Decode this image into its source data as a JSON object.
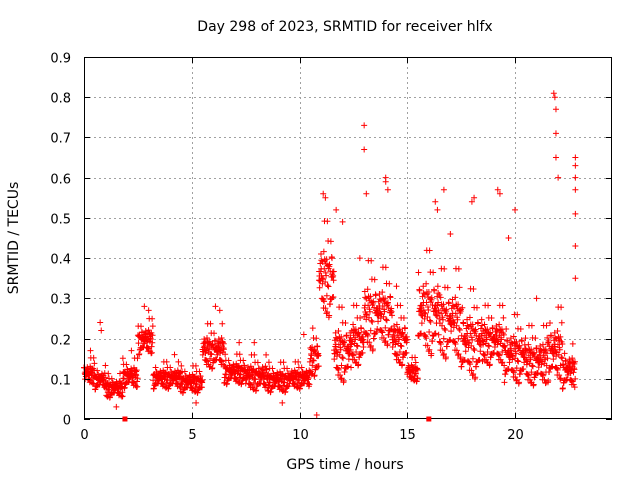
{
  "chart_data": {
    "type": "scatter",
    "title": "Day 298 of 2023, SRMTID for receiver hlfx",
    "xlabel": "GPS time / hours",
    "ylabel": "SRMTID / TECUs",
    "xlim": [
      0,
      24.5
    ],
    "ylim": [
      0,
      0.9
    ],
    "xticks": [
      0,
      5,
      10,
      15,
      20
    ],
    "xtick_labels": [
      "0",
      "5",
      "10",
      "15",
      "20"
    ],
    "yticks": [
      0,
      0.1,
      0.2,
      0.3,
      0.4,
      0.5,
      0.6,
      0.7,
      0.8,
      0.9
    ],
    "ytick_labels": [
      "0",
      "0.1",
      "0.2",
      "0.3",
      "0.4",
      "0.5",
      "0.6",
      "0.7",
      "0.8",
      "0.9"
    ],
    "grid": true,
    "marker": "+",
    "color": "#ff0000",
    "axis_markers_x": [
      1.9,
      16.0
    ],
    "series": [
      {
        "name": "SRMTID",
        "segments": [
          {
            "start": 0.0,
            "end": 0.5,
            "min": 0.07,
            "max": 0.16,
            "peaks": [
              [
                0.3,
                0.17
              ]
            ]
          },
          {
            "start": 0.5,
            "end": 1.0,
            "min": 0.06,
            "max": 0.14,
            "peaks": [
              [
                0.75,
                0.24
              ],
              [
                0.8,
                0.22
              ]
            ]
          },
          {
            "start": 1.0,
            "end": 1.8,
            "min": 0.04,
            "max": 0.12,
            "peaks": [
              [
                1.5,
                0.03
              ]
            ]
          },
          {
            "start": 1.8,
            "end": 2.5,
            "min": 0.06,
            "max": 0.16,
            "peaks": [
              [
                2.2,
                0.17
              ]
            ]
          },
          {
            "start": 2.5,
            "end": 3.2,
            "min": 0.14,
            "max": 0.26,
            "peaks": [
              [
                2.8,
                0.28
              ],
              [
                3.0,
                0.27
              ]
            ]
          },
          {
            "start": 3.2,
            "end": 4.5,
            "min": 0.06,
            "max": 0.15,
            "peaks": [
              [
                4.2,
                0.16
              ]
            ]
          },
          {
            "start": 4.5,
            "end": 5.5,
            "min": 0.05,
            "max": 0.14,
            "peaks": [
              [
                5.2,
                0.04
              ]
            ]
          },
          {
            "start": 5.5,
            "end": 6.5,
            "min": 0.1,
            "max": 0.25,
            "peaks": [
              [
                6.1,
                0.28
              ],
              [
                6.3,
                0.27
              ]
            ]
          },
          {
            "start": 6.5,
            "end": 7.5,
            "min": 0.07,
            "max": 0.17,
            "peaks": [
              [
                7.2,
                0.19
              ]
            ]
          },
          {
            "start": 7.5,
            "end": 8.5,
            "min": 0.05,
            "max": 0.17,
            "peaks": [
              [
                7.9,
                0.19
              ]
            ]
          },
          {
            "start": 8.5,
            "end": 9.5,
            "min": 0.05,
            "max": 0.15,
            "peaks": [
              [
                9.2,
                0.04
              ]
            ]
          },
          {
            "start": 9.5,
            "end": 10.5,
            "min": 0.06,
            "max": 0.15,
            "peaks": [
              [
                10.2,
                0.21
              ]
            ]
          },
          {
            "start": 10.5,
            "end": 10.9,
            "min": 0.08,
            "max": 0.24,
            "peaks": [
              [
                10.8,
                0.01
              ]
            ]
          },
          {
            "start": 10.9,
            "end": 11.6,
            "min": 0.2,
            "max": 0.52,
            "peaks": [
              [
                11.1,
                0.56
              ],
              [
                11.2,
                0.55
              ]
            ]
          },
          {
            "start": 11.6,
            "end": 12.4,
            "min": 0.05,
            "max": 0.3,
            "peaks": [
              [
                11.7,
                0.52
              ],
              [
                12.0,
                0.49
              ]
            ]
          },
          {
            "start": 12.4,
            "end": 13.0,
            "min": 0.1,
            "max": 0.3,
            "peaks": [
              [
                12.8,
                0.4
              ]
            ]
          },
          {
            "start": 13.0,
            "end": 13.6,
            "min": 0.12,
            "max": 0.42,
            "peaks": [
              [
                13.0,
                0.73
              ],
              [
                13.0,
                0.67
              ],
              [
                13.1,
                0.56
              ]
            ]
          },
          {
            "start": 13.6,
            "end": 14.3,
            "min": 0.14,
            "max": 0.4,
            "peaks": [
              [
                14.0,
                0.6
              ],
              [
                14.0,
                0.59
              ],
              [
                14.1,
                0.57
              ]
            ]
          },
          {
            "start": 14.3,
            "end": 15.0,
            "min": 0.1,
            "max": 0.3,
            "peaks": [
              [
                14.5,
                0.33
              ]
            ]
          },
          {
            "start": 15.0,
            "end": 15.5,
            "min": 0.08,
            "max": 0.16,
            "peaks": [
              [
                15.3,
                0.1
              ]
            ]
          },
          {
            "start": 15.5,
            "end": 16.5,
            "min": 0.1,
            "max": 0.45,
            "peaks": [
              [
                16.3,
                0.54
              ],
              [
                16.4,
                0.52
              ]
            ]
          },
          {
            "start": 16.5,
            "end": 17.5,
            "min": 0.1,
            "max": 0.4,
            "peaks": [
              [
                16.7,
                0.57
              ],
              [
                17.0,
                0.46
              ]
            ]
          },
          {
            "start": 17.5,
            "end": 18.5,
            "min": 0.05,
            "max": 0.35,
            "peaks": [
              [
                18.0,
                0.54
              ],
              [
                18.1,
                0.55
              ]
            ]
          },
          {
            "start": 18.5,
            "end": 19.5,
            "min": 0.1,
            "max": 0.3,
            "peaks": [
              [
                19.2,
                0.57
              ],
              [
                19.3,
                0.56
              ]
            ]
          },
          {
            "start": 19.5,
            "end": 20.5,
            "min": 0.05,
            "max": 0.28,
            "peaks": [
              [
                19.7,
                0.45
              ],
              [
                20.0,
                0.52
              ]
            ]
          },
          {
            "start": 20.5,
            "end": 21.5,
            "min": 0.05,
            "max": 0.25,
            "peaks": [
              [
                21.0,
                0.3
              ]
            ]
          },
          {
            "start": 21.5,
            "end": 22.2,
            "min": 0.05,
            "max": 0.3,
            "peaks": [
              [
                21.8,
                0.81
              ],
              [
                21.85,
                0.8
              ],
              [
                21.9,
                0.77
              ],
              [
                21.9,
                0.71
              ],
              [
                21.9,
                0.65
              ],
              [
                22.0,
                0.6
              ]
            ]
          },
          {
            "start": 22.2,
            "end": 22.8,
            "min": 0.05,
            "max": 0.2,
            "peaks": [
              [
                22.8,
                0.65
              ],
              [
                22.8,
                0.63
              ],
              [
                22.8,
                0.6
              ],
              [
                22.8,
                0.57
              ],
              [
                22.8,
                0.51
              ],
              [
                22.8,
                0.43
              ],
              [
                22.8,
                0.35
              ]
            ]
          }
        ]
      }
    ]
  }
}
